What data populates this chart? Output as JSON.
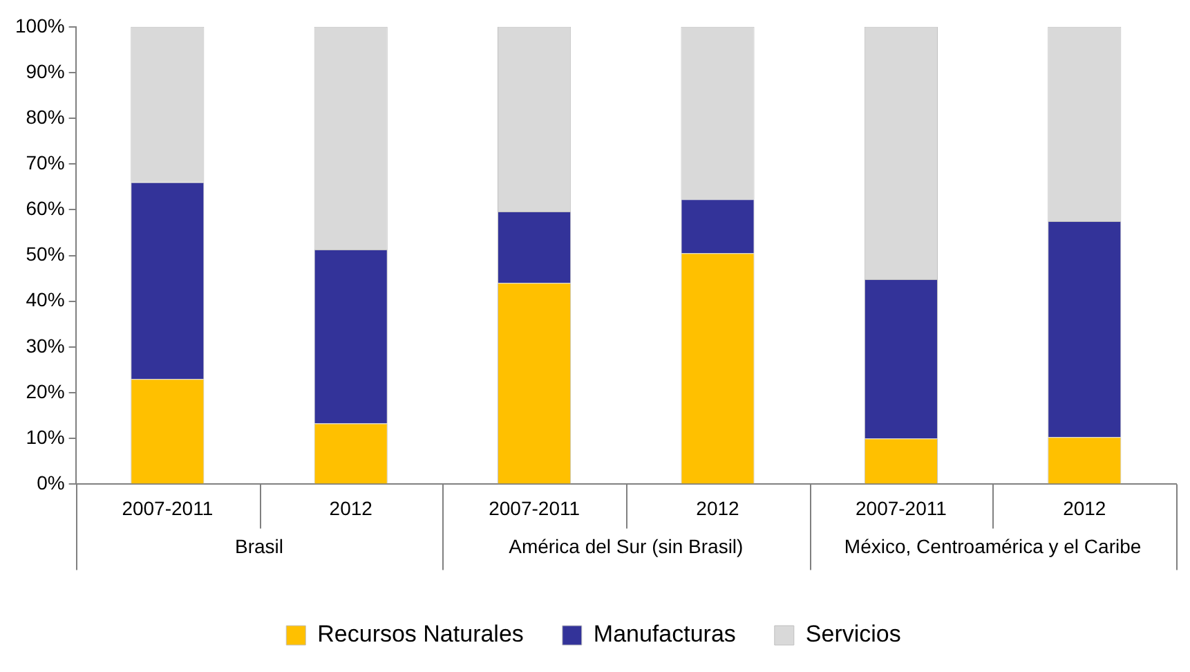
{
  "chart_data": {
    "type": "bar",
    "stacked": true,
    "categories": [
      "2007-2011",
      "2012",
      "2007-2011",
      "2012",
      "2007-2011",
      "2012"
    ],
    "annotations": [
      "Brasil",
      "América del Sur (sin Brasil)",
      "México, Centroamérica y el Caribe"
    ],
    "series": [
      {
        "name": "Recursos Naturales",
        "color": "#ffc000",
        "values": [
          23,
          13.3,
          44,
          50.5,
          10,
          10.3
        ]
      },
      {
        "name": "Manufacturas",
        "color": "#333399",
        "values": [
          43,
          38,
          15.6,
          11.8,
          34.8,
          47.2
        ]
      },
      {
        "name": "Servicios",
        "color": "#d9d9d9",
        "values": [
          34,
          48.7,
          40.4,
          37.7,
          55.2,
          42.5
        ]
      }
    ],
    "ylim": [
      0,
      100
    ],
    "yticks": [
      {
        "value": 0,
        "label": "0%"
      },
      {
        "value": 10,
        "label": "10%"
      },
      {
        "value": 20,
        "label": "20%"
      },
      {
        "value": 30,
        "label": "30%"
      },
      {
        "value": 40,
        "label": "40%"
      },
      {
        "value": 50,
        "label": "50%"
      },
      {
        "value": 60,
        "label": "60%"
      },
      {
        "value": 70,
        "label": "70%"
      },
      {
        "value": 80,
        "label": "80%"
      },
      {
        "value": 90,
        "label": "90%"
      },
      {
        "value": 100,
        "label": "100%"
      }
    ],
    "grid": false,
    "legend": "bottom"
  }
}
